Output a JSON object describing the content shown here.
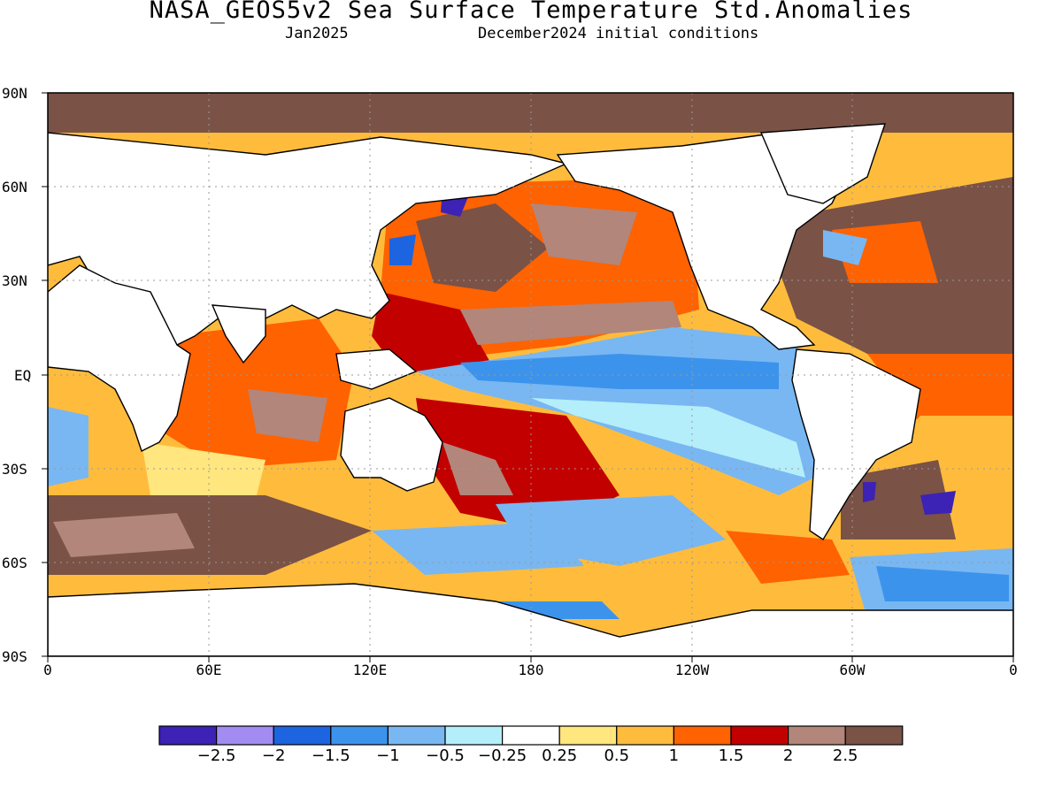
{
  "header": {
    "title": "NASA_GEOS5v2 Sea Surface Temperature Std.Anomalies",
    "forecast_month": "Jan2025",
    "init_conditions": "December2024 initial conditions"
  },
  "axes": {
    "lat_labels": [
      "90N",
      "60N",
      "30N",
      "EQ",
      "30S",
      "60S",
      "90S"
    ],
    "lon_labels": [
      "0",
      "60E",
      "120E",
      "180",
      "120W",
      "60W",
      "0"
    ]
  },
  "colorbar": {
    "colors": [
      "#3d22b6",
      "#a28cf2",
      "#1d64e0",
      "#3c93ec",
      "#78b7f2",
      "#b4eefa",
      "#ffffff",
      "#ffe67e",
      "#ffbc3c",
      "#ff6200",
      "#c30000",
      "#b2867a",
      "#7a5246"
    ],
    "labels": [
      "−2.5",
      "−2",
      "−1.5",
      "−1",
      "−0.5",
      "−0.25",
      "0.25",
      "0.5",
      "1",
      "1.5",
      "2",
      "2.5"
    ]
  },
  "colors": {
    "land": "#ffffff",
    "sea_ice": "#7a5246",
    "grid": "#999999",
    "coast": "#000000"
  }
}
